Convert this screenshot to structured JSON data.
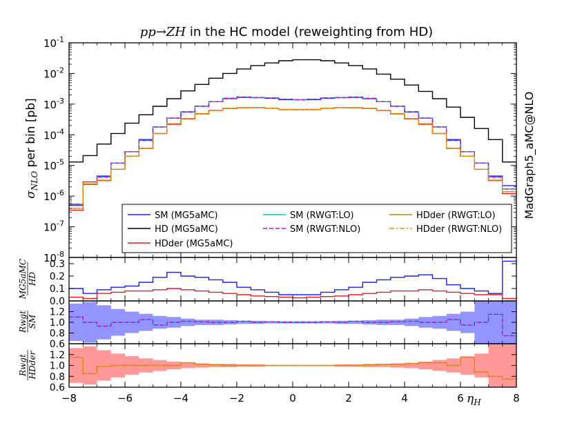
{
  "chart_data": [
    {
      "type": "line",
      "title_math": "pp→ZH",
      "title_rest": " in the HC model (reweighting from HD)",
      "ylabel_sym": "σ",
      "ylabel_sub": "NLO",
      "ylabel_rest": " per bin [pb]",
      "side_label": "MadGraph5_aMC@NLO",
      "yscale": "log",
      "xlim": [
        -8,
        8
      ],
      "ylim_exp": [
        -8,
        -1
      ],
      "yticks_exp": [
        "-8",
        "-7",
        "-6",
        "-5",
        "-4",
        "-3",
        "-2",
        "-1"
      ],
      "ytick_base": "10",
      "x_bin_edges": [
        -8,
        -7.5,
        -7,
        -6.5,
        -6,
        -5.5,
        -5,
        -4.5,
        -4,
        -3.5,
        -3,
        -2.5,
        -2,
        -1.5,
        -1,
        -0.5,
        0,
        0.5,
        1,
        1.5,
        2,
        2.5,
        3,
        3.5,
        4,
        4.5,
        5,
        5.5,
        6,
        6.5,
        7,
        7.5,
        8
      ],
      "series": [
        {
          "name": "SM (MG5aMC)",
          "color": "#1a1aff",
          "dash": "solid",
          "values": [
            5e-07,
            2.4e-06,
            4.5e-06,
            1.2e-05,
            2.8e-05,
            7e-05,
            0.00018,
            0.00035,
            0.00055,
            0.00085,
            0.0012,
            0.0015,
            0.00165,
            0.00162,
            0.00155,
            0.0014,
            0.00138,
            0.0014,
            0.00155,
            0.00162,
            0.00165,
            0.0015,
            0.0012,
            0.00085,
            0.00055,
            0.00035,
            0.00018,
            7e-05,
            2.8e-05,
            1.2e-05,
            4.5e-06,
            2.2e-06
          ]
        },
        {
          "name": "HD (MG5aMC)",
          "color": "#000000",
          "dash": "solid",
          "values": [
            1.3e-05,
            2.1e-05,
            5e-05,
            0.00011,
            0.00024,
            0.00045,
            0.00085,
            0.0015,
            0.0027,
            0.0044,
            0.007,
            0.01,
            0.014,
            0.018,
            0.022,
            0.026,
            0.028,
            0.028,
            0.026,
            0.022,
            0.018,
            0.014,
            0.0095,
            0.0065,
            0.0042,
            0.0026,
            0.0015,
            0.0008,
            0.00037,
            0.00016,
            7e-05,
            1.3e-05
          ]
        },
        {
          "name": "HDder (MG5aMC)",
          "color": "#e8191e",
          "dash": "solid",
          "values": [
            3.5e-07,
            2.9e-06,
            3.2e-06,
            7.5e-06,
            2e-05,
            3.6e-05,
            0.00011,
            0.00022,
            0.00033,
            0.00048,
            0.00062,
            0.00072,
            0.00076,
            0.00077,
            0.00073,
            0.00066,
            0.00066,
            0.00066,
            0.00073,
            0.00077,
            0.00076,
            0.00072,
            0.00062,
            0.00048,
            0.00033,
            0.00022,
            0.00011,
            3.6e-05,
            2e-05,
            7.5e-06,
            3.2e-06,
            1.2e-06
          ]
        },
        {
          "name": "SM (RWGT:LO)",
          "color": "#00c4c4",
          "dash": "solid",
          "values": [
            5.5e-07,
            2.4e-06,
            4.2e-06,
            1.2e-05,
            2.8e-05,
            6.5e-05,
            0.00018,
            0.00035,
            0.00056,
            0.00086,
            0.0012,
            0.00155,
            0.0017,
            0.00165,
            0.0016,
            0.00145,
            0.0014,
            0.00145,
            0.0016,
            0.00165,
            0.0017,
            0.00155,
            0.0012,
            0.00086,
            0.00056,
            0.00035,
            0.00018,
            6.5e-05,
            2.8e-05,
            1.2e-05,
            4.2e-06,
            1.7e-06
          ]
        },
        {
          "name": "SM (RWGT:NLO)",
          "color": "#d400d4",
          "dash": "dash",
          "values": [
            5.5e-07,
            2.4e-06,
            4.2e-06,
            1.2e-05,
            2.8e-05,
            6.5e-05,
            0.00018,
            0.00035,
            0.00056,
            0.00086,
            0.0012,
            0.00155,
            0.0017,
            0.00165,
            0.0016,
            0.00145,
            0.0014,
            0.00145,
            0.0016,
            0.00165,
            0.0017,
            0.00155,
            0.0012,
            0.00086,
            0.00056,
            0.00035,
            0.00018,
            6.5e-05,
            2.8e-05,
            1.2e-05,
            4.2e-06,
            1.7e-06
          ]
        },
        {
          "name": "HDder (RWGT:LO)",
          "color": "#b8860b",
          "dash": "solid",
          "values": [
            4e-07,
            2.5e-06,
            3.3e-06,
            7.5e-06,
            2e-05,
            3.6e-05,
            0.00011,
            0.00023,
            0.00034,
            0.00049,
            0.00063,
            0.00073,
            0.00077,
            0.00078,
            0.00074,
            0.00067,
            0.00067,
            0.00067,
            0.00074,
            0.00078,
            0.00077,
            0.00073,
            0.00063,
            0.00049,
            0.00034,
            0.00023,
            0.00011,
            3.6e-05,
            2e-05,
            7.5e-06,
            3.3e-06,
            1.4e-06
          ]
        },
        {
          "name": "HDder (RWGT:NLO)",
          "color": "#ff8c00",
          "dash": "dashdot",
          "values": [
            4e-07,
            2.5e-06,
            3.3e-06,
            7.5e-06,
            2e-05,
            3.6e-05,
            0.00011,
            0.00023,
            0.00034,
            0.00049,
            0.00063,
            0.00073,
            0.00077,
            0.00078,
            0.00074,
            0.00067,
            0.00067,
            0.00067,
            0.00074,
            0.00078,
            0.00077,
            0.00073,
            0.00063,
            0.00049,
            0.00034,
            0.00023,
            0.00011,
            3.6e-05,
            2e-05,
            7.5e-06,
            3.3e-06,
            1.4e-06
          ]
        }
      ],
      "legend": {
        "placement": "lower-right",
        "columns": 3,
        "order": [
          "SM (MG5aMC)",
          "HD (MG5aMC)",
          "HDder (MG5aMC)",
          "SM (RWGT:LO)",
          "SM (RWGT:NLO)",
          "HDder (RWGT:LO)",
          "HDder (RWGT:NLO)"
        ]
      }
    },
    {
      "type": "line",
      "ylabel_num": "MG5aMC",
      "ylabel_den": "HD",
      "ylim": [
        0,
        0.35
      ],
      "yticks": [
        "0.0",
        "0.1",
        "0.2",
        "0.3"
      ],
      "series": [
        {
          "name": "SM / HD",
          "color": "#1a1aff",
          "values": [
            0.1,
            0.06,
            0.09,
            0.11,
            0.12,
            0.15,
            0.19,
            0.23,
            0.2,
            0.19,
            0.17,
            0.15,
            0.11,
            0.09,
            0.07,
            0.05,
            0.05,
            0.05,
            0.07,
            0.09,
            0.11,
            0.15,
            0.17,
            0.19,
            0.2,
            0.21,
            0.18,
            0.13,
            0.1,
            0.08,
            0.06,
            0.32
          ]
        },
        {
          "name": "HDder / HD",
          "color": "#e8191e",
          "values": [
            0.03,
            0.02,
            0.06,
            0.07,
            0.08,
            0.08,
            0.09,
            0.1,
            0.09,
            0.08,
            0.07,
            0.06,
            0.05,
            0.04,
            0.035,
            0.03,
            0.025,
            0.03,
            0.035,
            0.04,
            0.05,
            0.06,
            0.07,
            0.08,
            0.08,
            0.09,
            0.08,
            0.07,
            0.06,
            0.05,
            0.05,
            0.02
          ]
        }
      ]
    },
    {
      "type": "line",
      "ylabel_num": "Rwgt",
      "ylabel_den": "SM",
      "ylim": [
        0.6,
        1.4
      ],
      "yticks": [
        "0.6",
        "0.8",
        "1.0",
        "1.2"
      ],
      "band": {
        "color": "#7070ff",
        "upper": [
          1.35,
          1.38,
          1.32,
          1.25,
          1.2,
          1.16,
          1.12,
          1.1,
          1.07,
          1.05,
          1.05,
          1.04,
          1.03,
          1.03,
          1.02,
          1.02,
          1.02,
          1.02,
          1.02,
          1.03,
          1.03,
          1.04,
          1.05,
          1.05,
          1.07,
          1.1,
          1.12,
          1.16,
          1.2,
          1.4,
          1.4,
          1.4
        ],
        "lower": [
          0.65,
          0.62,
          0.68,
          0.75,
          0.8,
          0.84,
          0.88,
          0.9,
          0.93,
          0.95,
          0.95,
          0.96,
          0.97,
          0.97,
          0.98,
          0.98,
          0.98,
          0.98,
          0.98,
          0.97,
          0.97,
          0.96,
          0.95,
          0.95,
          0.93,
          0.9,
          0.88,
          0.84,
          0.8,
          0.6,
          0.6,
          0.6
        ]
      },
      "series": [
        {
          "name": "SM (RWGT:LO) / SM",
          "color": "#00c4c4",
          "values": [
            1.1,
            1.0,
            0.93,
            1.0,
            1.0,
            1.05,
            0.95,
            1.0,
            1.02,
            1.01,
            1.0,
            1.0,
            1.02,
            1.0,
            1.01,
            1.0,
            1.0,
            1.0,
            1.01,
            1.0,
            1.02,
            1.0,
            1.0,
            1.01,
            1.02,
            1.0,
            1.0,
            1.05,
            0.95,
            1.0,
            1.15,
            0.75
          ]
        },
        {
          "name": "SM (RWGT:NLO) / SM",
          "color": "#d400d4",
          "values": [
            1.1,
            1.0,
            0.93,
            1.0,
            1.0,
            1.05,
            0.95,
            1.0,
            1.02,
            1.01,
            1.0,
            1.0,
            1.02,
            1.0,
            1.01,
            1.0,
            1.0,
            1.0,
            1.01,
            1.0,
            1.02,
            1.0,
            1.0,
            1.01,
            1.02,
            1.0,
            1.0,
            1.05,
            0.95,
            1.0,
            1.15,
            0.75
          ]
        }
      ]
    },
    {
      "type": "line",
      "ylabel_num": "Rwgt",
      "ylabel_den": "HDder",
      "ylim": [
        0.6,
        1.4
      ],
      "yticks": [
        "0.6",
        "0.8",
        "1.0",
        "1.2"
      ],
      "xlabel": "η",
      "xlabel_sub": "H",
      "xticks": [
        "−8",
        "−6",
        "−4",
        "−2",
        "0",
        "2",
        "4",
        "6",
        "8"
      ],
      "band": {
        "color": "#ff7575",
        "upper": [
          1.32,
          1.35,
          1.28,
          1.22,
          1.17,
          1.13,
          1.1,
          1.07,
          1.05,
          1.04,
          1.03,
          1.03,
          1.02,
          1.02,
          1.01,
          1.01,
          1.01,
          1.01,
          1.01,
          1.02,
          1.02,
          1.03,
          1.03,
          1.04,
          1.05,
          1.07,
          1.1,
          1.13,
          1.17,
          1.22,
          1.4,
          1.4
        ],
        "lower": [
          0.68,
          0.65,
          0.72,
          0.78,
          0.83,
          0.87,
          0.9,
          0.93,
          0.95,
          0.96,
          0.97,
          0.97,
          0.98,
          0.98,
          0.99,
          0.99,
          0.99,
          0.99,
          0.99,
          0.98,
          0.98,
          0.97,
          0.97,
          0.96,
          0.95,
          0.93,
          0.9,
          0.87,
          0.83,
          0.78,
          0.6,
          0.6
        ]
      },
      "series": [
        {
          "name": "HDder (RWGT:LO) / HDder",
          "color": "#b8860b",
          "values": [
            1.15,
            0.85,
            0.98,
            1.0,
            1.0,
            1.0,
            1.0,
            1.0,
            1.05,
            1.02,
            1.01,
            1.0,
            1.0,
            1.0,
            1.0,
            1.0,
            1.0,
            1.0,
            1.0,
            1.0,
            1.0,
            1.01,
            1.02,
            1.02,
            1.03,
            1.05,
            1.05,
            1.0,
            1.15,
            0.88,
            0.8,
            0.75
          ]
        },
        {
          "name": "HDder (RWGT:NLO) / HDder",
          "color": "#ff8c00",
          "values": [
            1.15,
            0.85,
            0.98,
            1.0,
            1.0,
            1.0,
            1.0,
            1.0,
            1.05,
            1.02,
            1.01,
            1.0,
            1.0,
            1.0,
            1.0,
            1.0,
            1.0,
            1.0,
            1.0,
            1.0,
            1.0,
            1.01,
            1.02,
            1.02,
            1.03,
            1.05,
            1.05,
            1.0,
            1.15,
            0.88,
            0.8,
            0.75
          ]
        }
      ]
    }
  ]
}
